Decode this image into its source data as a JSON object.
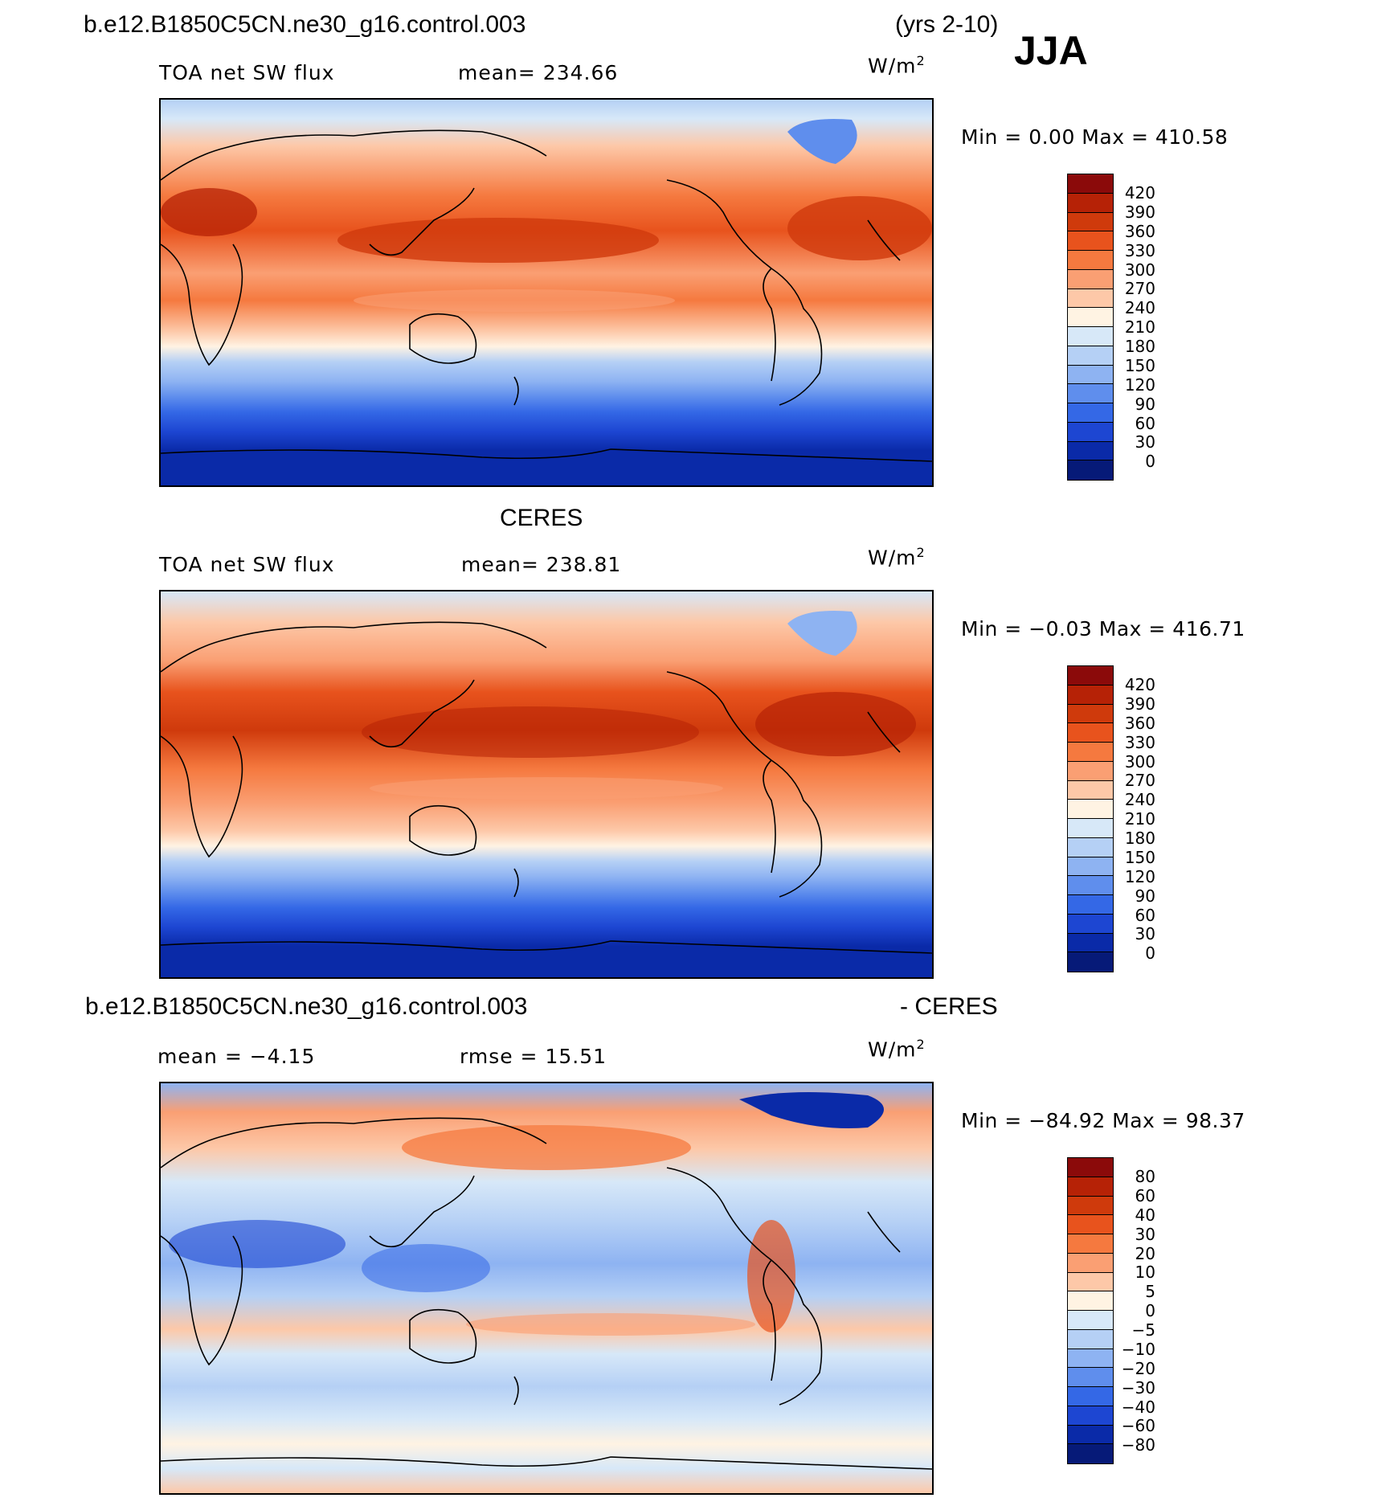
{
  "header": {
    "case_name": "b.e12.B1850C5CN.ne30_g16.control.003",
    "years": "(yrs 2-10)",
    "season": "JJA"
  },
  "panels": [
    {
      "name": "model",
      "heading": "",
      "left_label": "TOA net SW flux",
      "center_label": "mean= 234.66",
      "unit": "W/m",
      "unit_sup": "2",
      "minmax_text": "Min =    0.00 Max = 410.58"
    },
    {
      "name": "obs",
      "heading": "CERES",
      "left_label": "TOA net SW flux",
      "center_label": "mean= 238.81",
      "unit": "W/m",
      "unit_sup": "2",
      "minmax_text": "Min =  −0.03 Max = 416.71"
    },
    {
      "name": "diff",
      "heading_left": "b.e12.B1850C5CN.ne30_g16.control.003",
      "heading_right": "- CERES",
      "left_label": "mean =   −4.15",
      "center_label": "rmse =   15.51",
      "unit": "W/m",
      "unit_sup": "2",
      "minmax_text": "Min = −84.92 Max =   98.37"
    }
  ],
  "chart_data": [
    {
      "type": "heatmap",
      "title": "TOA net SW flux",
      "subtitle": "b.e12.B1850C5CN.ne30_g16.control.003 (yrs 2-10) JJA",
      "mean": 234.66,
      "min": 0.0,
      "max": 410.58,
      "units": "W/m2",
      "colorbar_levels": [
        "420",
        "390",
        "360",
        "330",
        "300",
        "270",
        "240",
        "210",
        "180",
        "150",
        "120",
        "90",
        "60",
        "30",
        "0"
      ],
      "zonal_profile_south_to_north": [
        {
          "lat": -90,
          "value": 10
        },
        {
          "lat": -75,
          "value": 25
        },
        {
          "lat": -60,
          "value": 70
        },
        {
          "lat": -50,
          "value": 120
        },
        {
          "lat": -40,
          "value": 170
        },
        {
          "lat": -30,
          "value": 215
        },
        {
          "lat": -20,
          "value": 265
        },
        {
          "lat": -10,
          "value": 290
        },
        {
          "lat": 0,
          "value": 300
        },
        {
          "lat": 10,
          "value": 305
        },
        {
          "lat": 20,
          "value": 350
        },
        {
          "lat": 30,
          "value": 345
        },
        {
          "lat": 40,
          "value": 330
        },
        {
          "lat": 50,
          "value": 300
        },
        {
          "lat": 60,
          "value": 270
        },
        {
          "lat": 70,
          "value": 230
        },
        {
          "lat": 80,
          "value": 170
        },
        {
          "lat": 90,
          "value": 150
        }
      ]
    },
    {
      "type": "heatmap",
      "title": "TOA net SW flux",
      "subtitle": "CERES",
      "mean": 238.81,
      "min": -0.03,
      "max": 416.71,
      "units": "W/m2",
      "colorbar_levels": [
        "420",
        "390",
        "360",
        "330",
        "300",
        "270",
        "240",
        "210",
        "180",
        "150",
        "120",
        "90",
        "60",
        "30",
        "0"
      ],
      "zonal_profile_south_to_north": [
        {
          "lat": -90,
          "value": 10
        },
        {
          "lat": -75,
          "value": 25
        },
        {
          "lat": -60,
          "value": 75
        },
        {
          "lat": -50,
          "value": 125
        },
        {
          "lat": -40,
          "value": 175
        },
        {
          "lat": -30,
          "value": 225
        },
        {
          "lat": -20,
          "value": 270
        },
        {
          "lat": -10,
          "value": 300
        },
        {
          "lat": 0,
          "value": 290
        },
        {
          "lat": 10,
          "value": 320
        },
        {
          "lat": 20,
          "value": 355
        },
        {
          "lat": 30,
          "value": 350
        },
        {
          "lat": 40,
          "value": 330
        },
        {
          "lat": 50,
          "value": 300
        },
        {
          "lat": 60,
          "value": 270
        },
        {
          "lat": 70,
          "value": 225
        },
        {
          "lat": 80,
          "value": 175
        },
        {
          "lat": 90,
          "value": 160
        }
      ]
    },
    {
      "type": "heatmap",
      "title": "model - CERES",
      "subtitle": "b.e12.B1850C5CN.ne30_g16.control.003 - CERES",
      "mean": -4.15,
      "rmse": 15.51,
      "min": -84.92,
      "max": 98.37,
      "units": "W/m2",
      "colorbar_levels": [
        "80",
        "60",
        "40",
        "30",
        "20",
        "10",
        "5",
        "0",
        "−5",
        "−10",
        "−20",
        "−30",
        "−40",
        "−60",
        "−80"
      ],
      "zonal_profile_south_to_north": [
        {
          "lat": -90,
          "value": 3
        },
        {
          "lat": -75,
          "value": 1
        },
        {
          "lat": -60,
          "value": -4
        },
        {
          "lat": -50,
          "value": -6
        },
        {
          "lat": -40,
          "value": -3
        },
        {
          "lat": -30,
          "value": 4
        },
        {
          "lat": -20,
          "value": -6
        },
        {
          "lat": -10,
          "value": -10
        },
        {
          "lat": 0,
          "value": -12
        },
        {
          "lat": 10,
          "value": -15
        },
        {
          "lat": 20,
          "value": -6
        },
        {
          "lat": 30,
          "value": 5
        },
        {
          "lat": 40,
          "value": 15
        },
        {
          "lat": 50,
          "value": 10
        },
        {
          "lat": 60,
          "value": 12
        },
        {
          "lat": 70,
          "value": 18
        },
        {
          "lat": 80,
          "value": -20
        },
        {
          "lat": 90,
          "value": -12
        }
      ]
    }
  ],
  "colors": {
    "abs_scale": [
      "#8b0a0a",
      "#b62206",
      "#cf3a0c",
      "#e8531d",
      "#f5793f",
      "#fa9f73",
      "#fdc8a8",
      "#fff3e3",
      "#d7e8f8",
      "#b5d0f5",
      "#8eb3f2",
      "#5f8eed",
      "#3468e6",
      "#1d46d2",
      "#0a2aa8",
      "#061a78"
    ],
    "diff_scale": [
      "#8b0a0a",
      "#b62206",
      "#cf3a0c",
      "#e8531d",
      "#f5793f",
      "#fa9f73",
      "#fdc8a8",
      "#fff3e3",
      "#d7e8f8",
      "#b5d0f5",
      "#8eb3f2",
      "#5f8eed",
      "#3468e6",
      "#1d46d2",
      "#0a2aa8",
      "#061a78"
    ]
  }
}
